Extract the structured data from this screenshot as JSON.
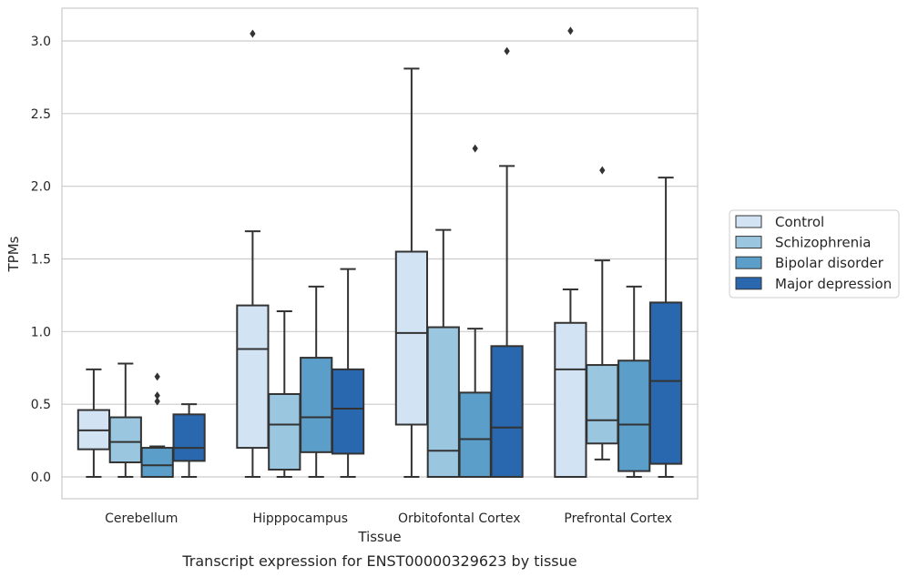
{
  "chart_data": {
    "type": "box",
    "title": "",
    "xlabel": "Tissue",
    "ylabel": "TPMs",
    "caption": "Transcript expression for ENST00000329623 by tissue",
    "ylim": [
      -0.15,
      3.23
    ],
    "yticks": [
      "0.0",
      "0.5",
      "1.0",
      "1.5",
      "2.0",
      "2.5",
      "3.0"
    ],
    "grid": "horizontal",
    "legend_position": "right",
    "categories": [
      "Cerebellum",
      "Hipppocampus",
      "Orbitofontal Cortex",
      "Prefrontal Cortex"
    ],
    "series": [
      {
        "name": "Control",
        "color": "#d2e3f3",
        "boxes": [
          {
            "whislo": 0.0,
            "q1": 0.19,
            "med": 0.32,
            "q3": 0.46,
            "whishi": 0.74,
            "fliers": []
          },
          {
            "whislo": 0.0,
            "q1": 0.2,
            "med": 0.88,
            "q3": 1.18,
            "whishi": 1.69,
            "fliers": [
              3.05
            ]
          },
          {
            "whislo": 0.0,
            "q1": 0.36,
            "med": 0.99,
            "q3": 1.55,
            "whishi": 2.81,
            "fliers": []
          },
          {
            "whislo": 0.0,
            "q1": 0.0,
            "med": 0.74,
            "q3": 1.06,
            "whishi": 1.29,
            "fliers": [
              3.07
            ]
          }
        ]
      },
      {
        "name": "Schizophrenia",
        "color": "#9ac7df",
        "boxes": [
          {
            "whislo": 0.0,
            "q1": 0.1,
            "med": 0.24,
            "q3": 0.41,
            "whishi": 0.78,
            "fliers": []
          },
          {
            "whislo": 0.0,
            "q1": 0.05,
            "med": 0.36,
            "q3": 0.57,
            "whishi": 1.14,
            "fliers": []
          },
          {
            "whislo": 0.0,
            "q1": 0.0,
            "med": 0.18,
            "q3": 1.03,
            "whishi": 1.7,
            "fliers": []
          },
          {
            "whislo": 0.12,
            "q1": 0.23,
            "med": 0.39,
            "q3": 0.77,
            "whishi": 1.49,
            "fliers": [
              2.11
            ]
          }
        ]
      },
      {
        "name": "Bipolar disorder",
        "color": "#5a9ec9",
        "boxes": [
          {
            "whislo": 0.0,
            "q1": 0.0,
            "med": 0.08,
            "q3": 0.2,
            "whishi": 0.21,
            "fliers": [
              0.52,
              0.56,
              0.69
            ]
          },
          {
            "whislo": 0.0,
            "q1": 0.17,
            "med": 0.41,
            "q3": 0.82,
            "whishi": 1.31,
            "fliers": []
          },
          {
            "whislo": 0.0,
            "q1": 0.0,
            "med": 0.26,
            "q3": 0.58,
            "whishi": 1.02,
            "fliers": [
              2.26
            ]
          },
          {
            "whislo": 0.0,
            "q1": 0.04,
            "med": 0.36,
            "q3": 0.8,
            "whishi": 1.31,
            "fliers": []
          }
        ]
      },
      {
        "name": "Major depression",
        "color": "#2967ae",
        "boxes": [
          {
            "whislo": 0.0,
            "q1": 0.11,
            "med": 0.2,
            "q3": 0.43,
            "whishi": 0.5,
            "fliers": []
          },
          {
            "whislo": 0.0,
            "q1": 0.16,
            "med": 0.47,
            "q3": 0.74,
            "whishi": 1.43,
            "fliers": []
          },
          {
            "whislo": 0.0,
            "q1": 0.0,
            "med": 0.34,
            "q3": 0.9,
            "whishi": 2.14,
            "fliers": [
              2.93
            ]
          },
          {
            "whislo": 0.0,
            "q1": 0.09,
            "med": 0.66,
            "q3": 1.2,
            "whishi": 2.06,
            "fliers": []
          }
        ]
      }
    ]
  },
  "colors": {
    "grid": "#cccccc",
    "frame": "#cccccc",
    "line": "#333333",
    "text": "#262626"
  }
}
